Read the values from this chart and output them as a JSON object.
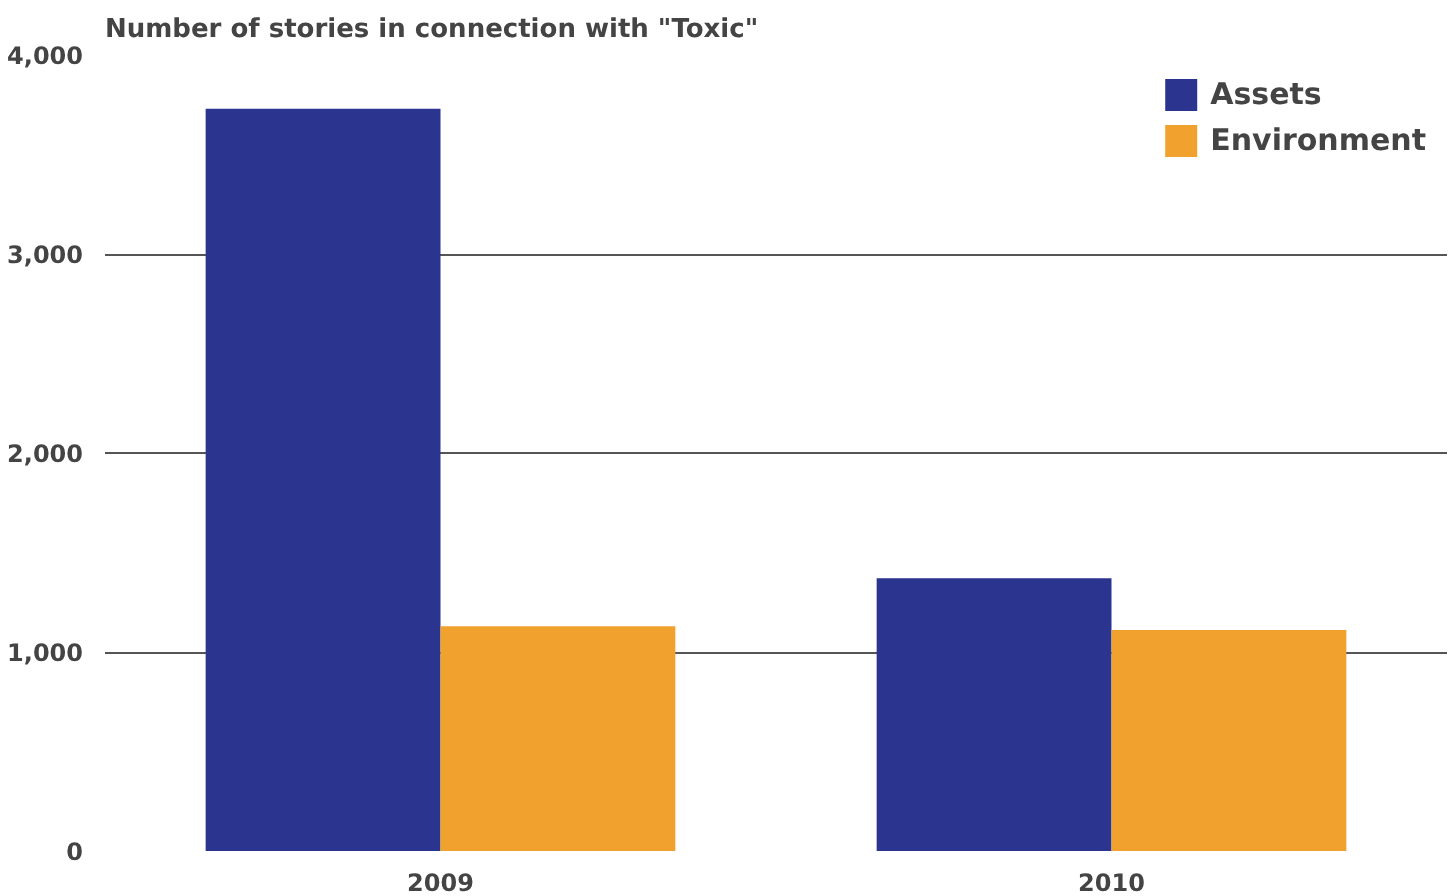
{
  "chart_data": {
    "type": "bar",
    "title": "Number of stories in connection with \"Toxic\"",
    "categories": [
      "2009",
      "2010"
    ],
    "series": [
      {
        "name": "Assets",
        "color": "#2b3590",
        "values": [
          3730,
          1370
        ]
      },
      {
        "name": "Environment",
        "color": "#f0a12e",
        "values": [
          1130,
          1110
        ]
      }
    ],
    "ylim": [
      0,
      4000
    ],
    "yticks": [
      {
        "value": 0,
        "label": "0"
      },
      {
        "value": 1000,
        "label": "1,000"
      },
      {
        "value": 2000,
        "label": "2,000"
      },
      {
        "value": 3000,
        "label": "3,000"
      },
      {
        "value": 4000,
        "label": "4,000"
      }
    ],
    "grid": "y",
    "legend": "top right"
  }
}
